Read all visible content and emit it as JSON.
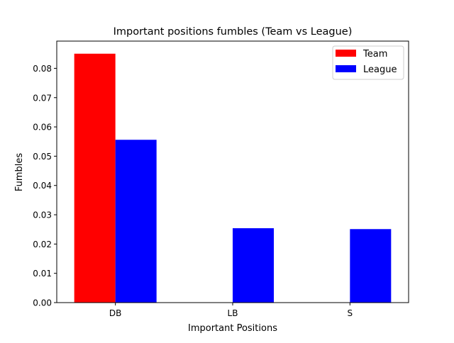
{
  "chart_data": {
    "type": "bar",
    "title": "Important positions fumbles (Team vs League)",
    "xlabel": "Important Positions",
    "ylabel": "Fumbles",
    "categories": [
      "DB",
      "LB",
      "S"
    ],
    "series": [
      {
        "name": "Team",
        "values": [
          0.085,
          0,
          0
        ],
        "color": "#ff0000"
      },
      {
        "name": "League",
        "values": [
          0.0556,
          0.0254,
          0.0251
        ],
        "color": "#0000ff"
      }
    ],
    "ylim": [
      0,
      0.0893
    ],
    "yticks": [
      "0.00",
      "0.01",
      "0.02",
      "0.03",
      "0.04",
      "0.05",
      "0.06",
      "0.07",
      "0.08"
    ],
    "grid": false,
    "legend_position": "top-right"
  }
}
